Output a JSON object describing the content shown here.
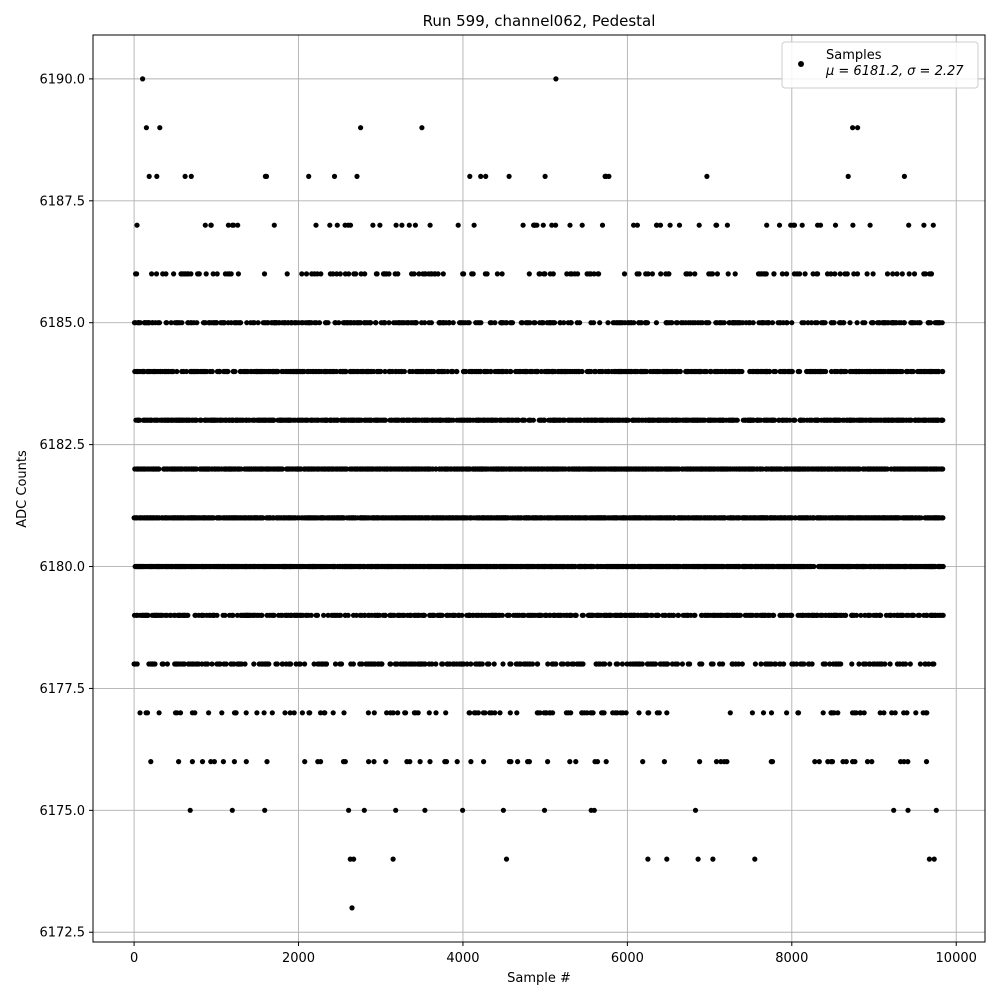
{
  "chart_data": {
    "type": "scatter",
    "title": "Run 599, channel062, Pedestal",
    "xlabel": "Sample #",
    "ylabel": "ADC Counts",
    "xlim": [
      -500,
      10350
    ],
    "ylim": [
      6172.3,
      6190.9
    ],
    "xticks": [
      0,
      2000,
      4000,
      6000,
      8000,
      10000
    ],
    "xtick_labels": [
      "0",
      "2000",
      "4000",
      "6000",
      "8000",
      "10000"
    ],
    "yticks": [
      6172.5,
      6175.0,
      6177.5,
      6180.0,
      6182.5,
      6185.0,
      6187.5,
      6190.0
    ],
    "ytick_labels": [
      "6172.5",
      "6175.0",
      "6177.5",
      "6180.0",
      "6182.5",
      "6185.0",
      "6187.5",
      "6190.0"
    ],
    "grid": true,
    "legend": {
      "placement": "top-right",
      "entry": "Samples",
      "stats": "μ = 6181.2, σ = 2.27"
    },
    "marker_color": "#000000",
    "sample_count": 9840,
    "sample_x_range": [
      0,
      9840
    ],
    "levels": [
      {
        "y": 6173,
        "density": 0.0003
      },
      {
        "y": 6174,
        "density": 0.003
      },
      {
        "y": 6175,
        "density": 0.012
      },
      {
        "y": 6176,
        "density": 0.035
      },
      {
        "y": 6177,
        "density": 0.07
      },
      {
        "y": 6178,
        "density": 0.16
      },
      {
        "y": 6179,
        "density": 0.3
      },
      {
        "y": 6180,
        "density": 0.65
      },
      {
        "y": 6181,
        "density": 0.65
      },
      {
        "y": 6182,
        "density": 0.55
      },
      {
        "y": 6183,
        "density": 0.45
      },
      {
        "y": 6184,
        "density": 0.35
      },
      {
        "y": 6185,
        "density": 0.22
      },
      {
        "y": 6186,
        "density": 0.1
      },
      {
        "y": 6187,
        "density": 0.03
      },
      {
        "y": 6188,
        "density": 0.012
      },
      {
        "y": 6189,
        "density": 0.002
      },
      {
        "y": 6190,
        "density": 0.0002
      }
    ],
    "outliers": [
      {
        "x": 2650,
        "y": 6173
      },
      {
        "x": 2630,
        "y": 6174
      },
      {
        "x": 2670,
        "y": 6174
      },
      {
        "x": 3150,
        "y": 6174
      },
      {
        "x": 4530,
        "y": 6174
      },
      {
        "x": 6250,
        "y": 6174
      },
      {
        "x": 6480,
        "y": 6174
      },
      {
        "x": 6860,
        "y": 6174
      },
      {
        "x": 7040,
        "y": 6174
      },
      {
        "x": 7550,
        "y": 6174
      },
      {
        "x": 150,
        "y": 6189
      },
      {
        "x": 8740,
        "y": 6189
      },
      {
        "x": 8800,
        "y": 6189
      },
      {
        "x": 5130,
        "y": 6190
      }
    ]
  }
}
